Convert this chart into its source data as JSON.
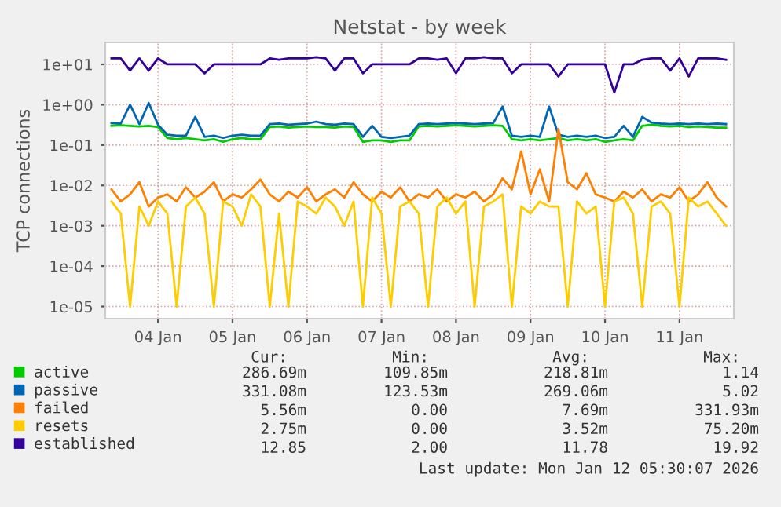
{
  "chart_data": {
    "type": "line",
    "title": "Netstat - by week",
    "ylabel": "TCP connections",
    "log": "y",
    "grid": true,
    "legend": "bottom",
    "xlim": [
      "2026-01-03T19:00",
      "2026-01-12T05:30"
    ],
    "xticks": [
      {
        "value": "2026-01-04T12:00",
        "label": "04 Jan"
      },
      {
        "value": "2026-01-05T12:00",
        "label": "05 Jan"
      },
      {
        "value": "2026-01-06T12:00",
        "label": "06 Jan"
      },
      {
        "value": "2026-01-07T12:00",
        "label": "07 Jan"
      },
      {
        "value": "2026-01-08T12:00",
        "label": "08 Jan"
      },
      {
        "value": "2026-01-09T12:00",
        "label": "09 Jan"
      },
      {
        "value": "2026-01-10T12:00",
        "label": "10 Jan"
      },
      {
        "value": "2026-01-11T12:00",
        "label": "11 Jan"
      }
    ],
    "ylim": [
      5e-06,
      35
    ],
    "yticks": [
      {
        "value": 1e-05,
        "label": "1e-05"
      },
      {
        "value": 0.0001,
        "label": "1e-04"
      },
      {
        "value": 0.001,
        "label": "1e-03"
      },
      {
        "value": 0.01,
        "label": "1e-02"
      },
      {
        "value": 0.1,
        "label": "1e-01"
      },
      {
        "value": 1,
        "label": "1e+00"
      },
      {
        "value": 10,
        "label": "1e+01"
      }
    ],
    "x": [
      "2026-01-03T21:00",
      "2026-01-04T00:00",
      "2026-01-04T03:00",
      "2026-01-04T06:00",
      "2026-01-04T09:00",
      "2026-01-04T12:00",
      "2026-01-04T15:00",
      "2026-01-04T18:00",
      "2026-01-04T21:00",
      "2026-01-05T00:00",
      "2026-01-05T03:00",
      "2026-01-05T06:00",
      "2026-01-05T09:00",
      "2026-01-05T12:00",
      "2026-01-05T15:00",
      "2026-01-05T18:00",
      "2026-01-05T21:00",
      "2026-01-06T00:00",
      "2026-01-06T03:00",
      "2026-01-06T06:00",
      "2026-01-06T09:00",
      "2026-01-06T12:00",
      "2026-01-06T15:00",
      "2026-01-06T18:00",
      "2026-01-06T21:00",
      "2026-01-07T00:00",
      "2026-01-07T03:00",
      "2026-01-07T06:00",
      "2026-01-07T09:00",
      "2026-01-07T12:00",
      "2026-01-07T15:00",
      "2026-01-07T18:00",
      "2026-01-07T21:00",
      "2026-01-08T00:00",
      "2026-01-08T03:00",
      "2026-01-08T06:00",
      "2026-01-08T09:00",
      "2026-01-08T12:00",
      "2026-01-08T15:00",
      "2026-01-08T18:00",
      "2026-01-08T21:00",
      "2026-01-09T00:00",
      "2026-01-09T03:00",
      "2026-01-09T06:00",
      "2026-01-09T09:00",
      "2026-01-09T12:00",
      "2026-01-09T15:00",
      "2026-01-09T18:00",
      "2026-01-09T21:00",
      "2026-01-10T00:00",
      "2026-01-10T03:00",
      "2026-01-10T06:00",
      "2026-01-10T09:00",
      "2026-01-10T12:00",
      "2026-01-10T15:00",
      "2026-01-10T18:00",
      "2026-01-10T21:00",
      "2026-01-11T00:00",
      "2026-01-11T03:00",
      "2026-01-11T06:00",
      "2026-01-11T09:00",
      "2026-01-11T12:00",
      "2026-01-11T15:00",
      "2026-01-11T18:00",
      "2026-01-11T21:00",
      "2026-01-12T00:00",
      "2026-01-12T03:00"
    ],
    "series": [
      {
        "name": "active",
        "color": "#00cc00",
        "values": [
          0.3,
          0.31,
          0.3,
          0.29,
          0.3,
          0.28,
          0.15,
          0.14,
          0.15,
          0.14,
          0.13,
          0.14,
          0.12,
          0.14,
          0.15,
          0.14,
          0.14,
          0.28,
          0.29,
          0.27,
          0.28,
          0.29,
          0.28,
          0.28,
          0.27,
          0.29,
          0.28,
          0.12,
          0.13,
          0.13,
          0.12,
          0.13,
          0.13,
          0.29,
          0.3,
          0.29,
          0.3,
          0.31,
          0.3,
          0.29,
          0.3,
          0.31,
          0.3,
          0.14,
          0.13,
          0.14,
          0.13,
          0.14,
          0.15,
          0.13,
          0.14,
          0.13,
          0.14,
          0.12,
          0.13,
          0.14,
          0.13,
          0.3,
          0.32,
          0.3,
          0.29,
          0.3,
          0.28,
          0.29,
          0.28,
          0.27,
          0.27
        ]
      },
      {
        "name": "passive",
        "color": "#0066b3",
        "values": [
          0.35,
          0.34,
          1.0,
          0.33,
          1.1,
          0.32,
          0.18,
          0.17,
          0.17,
          0.5,
          0.16,
          0.17,
          0.15,
          0.17,
          0.18,
          0.17,
          0.17,
          0.33,
          0.34,
          0.32,
          0.33,
          0.34,
          0.38,
          0.33,
          0.32,
          0.34,
          0.33,
          0.16,
          0.3,
          0.16,
          0.15,
          0.16,
          0.17,
          0.33,
          0.34,
          0.33,
          0.34,
          0.35,
          0.34,
          0.33,
          0.34,
          0.35,
          0.9,
          0.17,
          0.16,
          0.17,
          0.16,
          0.9,
          0.18,
          0.16,
          0.17,
          0.16,
          0.17,
          0.15,
          0.16,
          0.3,
          0.16,
          0.5,
          0.36,
          0.34,
          0.33,
          0.34,
          0.33,
          0.34,
          0.33,
          0.34,
          0.33
        ]
      },
      {
        "name": "failed",
        "color": "#ff8000",
        "values": [
          0.008,
          0.004,
          0.006,
          0.012,
          0.003,
          0.005,
          0.006,
          0.004,
          0.009,
          0.005,
          0.007,
          0.012,
          0.004,
          0.006,
          0.005,
          0.008,
          0.014,
          0.006,
          0.004,
          0.007,
          0.005,
          0.009,
          0.004,
          0.006,
          0.008,
          0.005,
          0.012,
          0.006,
          0.004,
          0.007,
          0.005,
          0.009,
          0.004,
          0.006,
          0.005,
          0.008,
          0.004,
          0.006,
          0.005,
          0.007,
          0.004,
          0.006,
          0.015,
          0.008,
          0.07,
          0.006,
          0.025,
          0.004,
          0.25,
          0.012,
          0.008,
          0.02,
          0.006,
          0.005,
          0.004,
          0.007,
          0.005,
          0.008,
          0.004,
          0.006,
          0.005,
          0.009,
          0.004,
          0.006,
          0.012,
          0.005,
          0.003
        ]
      },
      {
        "name": "resets",
        "color": "#ffcc00",
        "values": [
          0.004,
          0.002,
          1e-05,
          0.003,
          0.001,
          0.004,
          0.002,
          1e-05,
          0.003,
          0.005,
          0.002,
          1e-05,
          0.004,
          0.003,
          0.001,
          0.006,
          0.003,
          1e-05,
          0.002,
          1e-05,
          0.004,
          0.003,
          0.002,
          0.005,
          0.003,
          0.001,
          0.004,
          1e-05,
          0.005,
          0.002,
          1e-05,
          0.003,
          0.004,
          0.002,
          1e-05,
          0.003,
          0.005,
          0.002,
          0.004,
          1e-05,
          0.003,
          0.004,
          0.006,
          1e-05,
          0.003,
          0.002,
          0.004,
          0.003,
          0.003,
          1e-05,
          0.004,
          0.002,
          0.003,
          1e-05,
          0.004,
          0.005,
          0.002,
          1e-05,
          0.003,
          0.004,
          0.002,
          1e-05,
          0.005,
          0.003,
          0.004,
          0.002,
          0.001
        ]
      },
      {
        "name": "established",
        "color": "#330099",
        "values": [
          14,
          14,
          7,
          14,
          7,
          14,
          10,
          10,
          10,
          10,
          6,
          10,
          10,
          10,
          10,
          10,
          10,
          14,
          13,
          14,
          14,
          14,
          15,
          14,
          7,
          14,
          14,
          6,
          10,
          10,
          10,
          10,
          10,
          14,
          14,
          13,
          14,
          6,
          14,
          14,
          15,
          14,
          14,
          6,
          10,
          10,
          10,
          10,
          5,
          10,
          10,
          10,
          10,
          10,
          2,
          10,
          10,
          13,
          14,
          14,
          7,
          14,
          5,
          14,
          14,
          14,
          13
        ]
      }
    ],
    "annotations": [
      "Cur:",
      "Min:",
      "Avg:",
      "Max:",
      "286.69m",
      "109.85m",
      "218.81m",
      "1.14",
      "331.08m",
      "123.53m",
      "269.06m",
      "5.02",
      "5.56m",
      "0.00",
      "7.69m",
      "331.93m",
      "2.75m",
      "0.00",
      "3.52m",
      "75.20m",
      "12.85",
      "2.00",
      "11.78",
      "19.92",
      "Last update: Mon Jan 12 05:30:07 2026"
    ]
  }
}
